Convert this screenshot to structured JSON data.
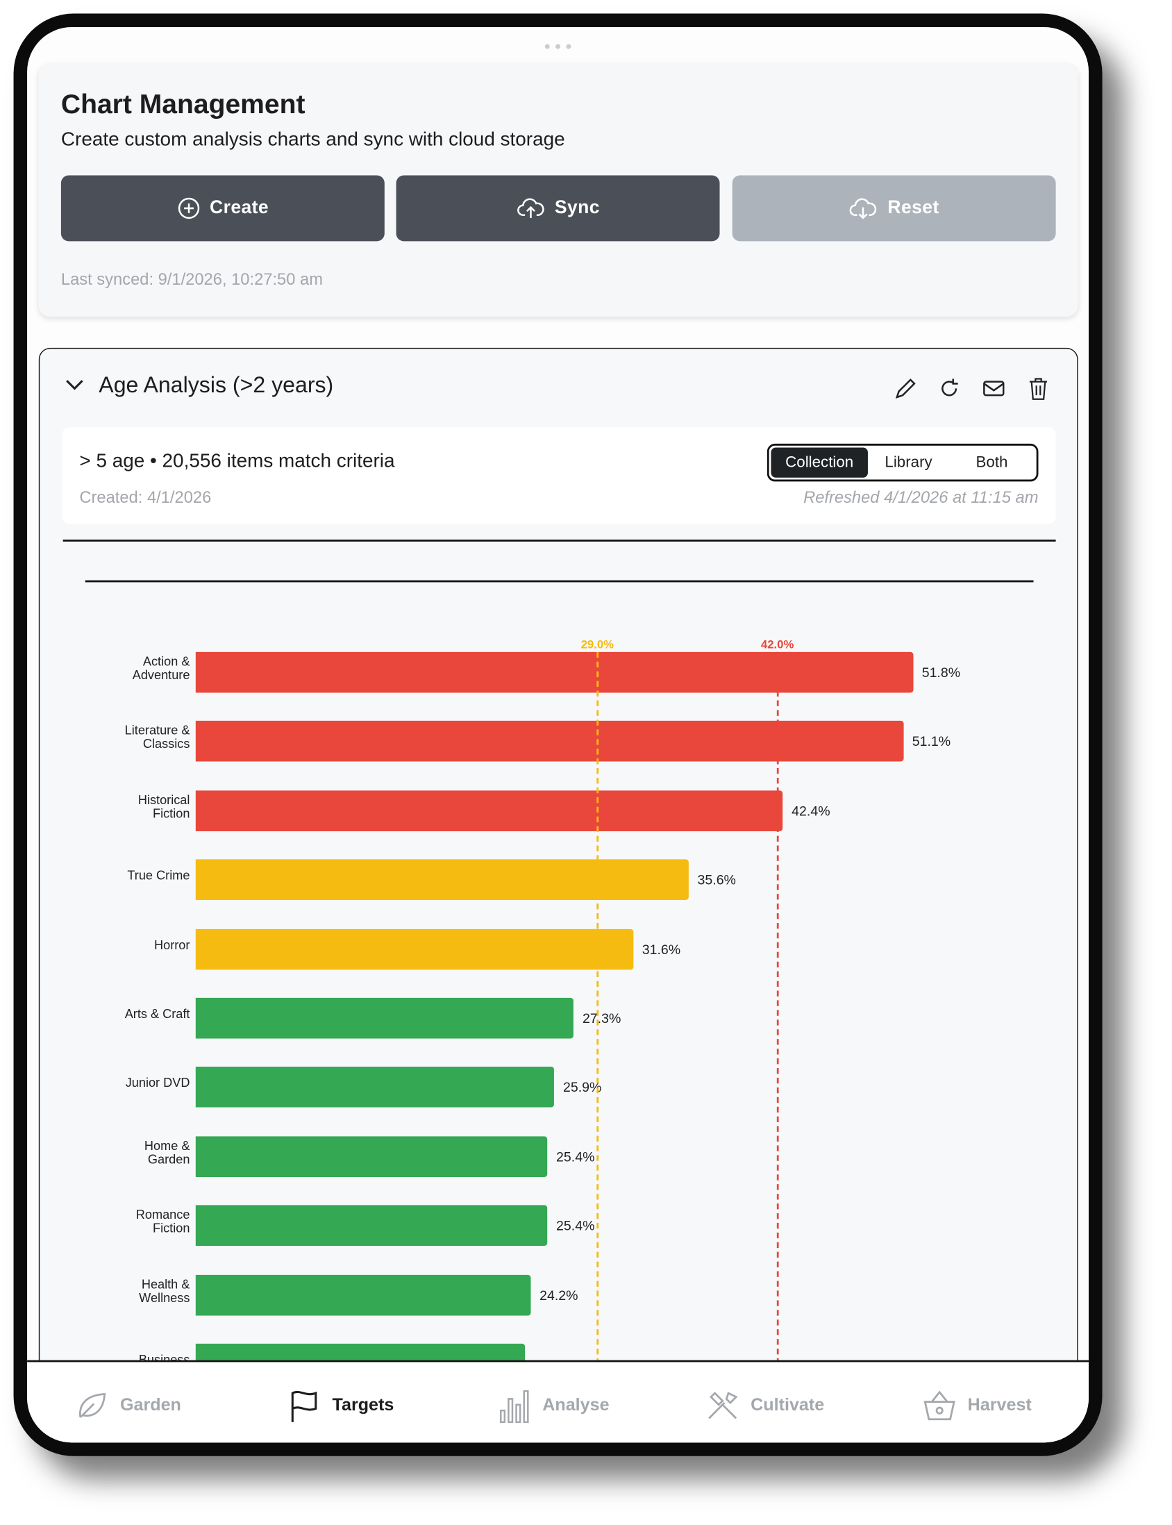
{
  "header": {
    "title": "Chart Management",
    "subtitle": "Create custom analysis charts and sync with cloud storage",
    "buttons": [
      "Create",
      "Sync",
      "Reset"
    ],
    "last_synced": "Last synced: 9/1/2026, 10:27:50 am"
  },
  "panel": {
    "title": "Age Analysis (>2 years)",
    "criteria": "> 5 age • 20,556 items match criteria",
    "created": "Created: 4/1/2026",
    "refreshed": "Refreshed 4/1/2026 at 11:15 am",
    "toggle": [
      "Collection",
      "Library",
      "Both"
    ],
    "toggle_selected": 0
  },
  "chart_data": {
    "type": "bar",
    "orientation": "horizontal",
    "categories": [
      "Action & Adventure",
      "Literature & Classics",
      "Historical Fiction",
      "True Crime",
      "Horror",
      "Arts & Craft",
      "Junior DVD",
      "Home & Garden",
      "Romance Fiction",
      "Health & Wellness",
      "Business"
    ],
    "values": [
      51.8,
      51.1,
      42.4,
      35.6,
      31.6,
      27.3,
      25.9,
      25.4,
      25.4,
      24.2,
      23.8
    ],
    "value_labels": [
      "51.8%",
      "51.1%",
      "42.4%",
      "35.6%",
      "31.6%",
      "27.3%",
      "25.9%",
      "25.4%",
      "25.4%",
      "24.2%",
      null
    ],
    "color": "#34a853",
    "xlim": [
      0,
      60
    ],
    "thresholds": [
      {
        "value": 29,
        "label": "29.0%",
        "color": "#f6bb10"
      },
      {
        "value": 42,
        "label": "42.0%",
        "color": "#e9473b"
      }
    ]
  },
  "nav": {
    "items": [
      "Garden",
      "Targets",
      "Analyse",
      "Cultivate",
      "Harvest"
    ],
    "active": 1
  }
}
